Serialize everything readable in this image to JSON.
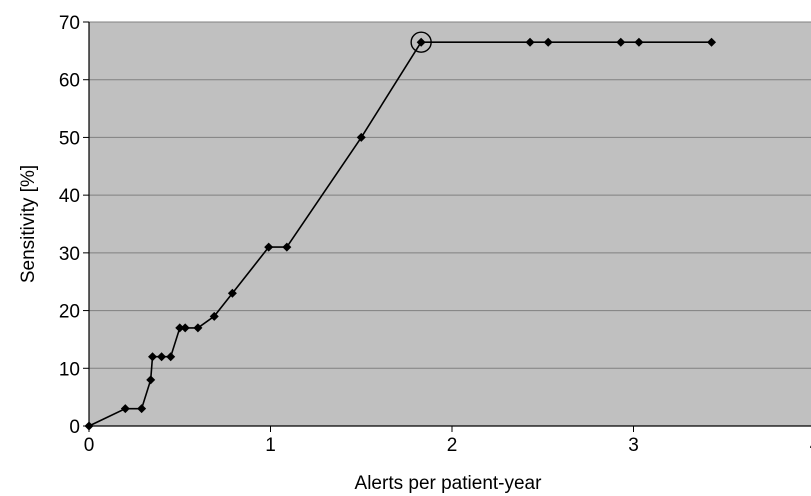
{
  "chart_data": {
    "type": "line",
    "xlabel": "Alerts per patient-year",
    "ylabel": "Sensitivity [%]",
    "xlim": [
      0,
      4
    ],
    "ylim": [
      0,
      70
    ],
    "x_ticks": [
      "0",
      "1",
      "2",
      "3",
      "4"
    ],
    "y_ticks": [
      "0",
      "10",
      "20",
      "30",
      "40",
      "50",
      "60",
      "70"
    ],
    "grid": "horizontal",
    "legend": "none",
    "series": [
      {
        "x": [
          0,
          0.2,
          0.29,
          0.34,
          0.35,
          0.4,
          0.45,
          0.5,
          0.53,
          0.6,
          0.69,
          0.79,
          0.99,
          1.09,
          1.5,
          1.83,
          2.43,
          2.53,
          2.93,
          3.03,
          3.43
        ],
        "y": [
          0,
          3,
          3,
          8,
          12,
          12,
          12,
          17,
          17,
          17,
          19,
          23,
          31,
          31,
          50,
          66.5,
          66.5,
          66.5,
          66.5,
          66.5,
          66.5
        ]
      }
    ],
    "highlight": {
      "x": 1.83,
      "y": 66.5
    },
    "colors": {
      "plot_background": "#c0c0c0",
      "grid": "#808080",
      "line": "#000000"
    }
  }
}
